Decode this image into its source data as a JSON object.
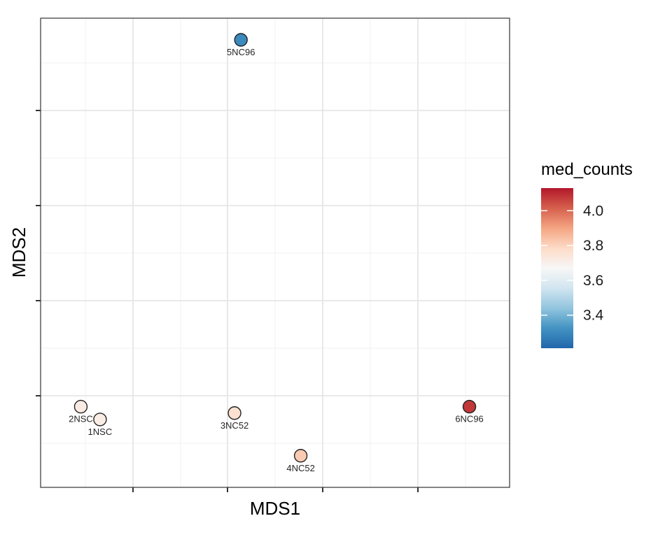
{
  "chart_data": {
    "type": "scatter",
    "title": "",
    "xlabel": "MDS1",
    "ylabel": "MDS2",
    "x_axis_tick_labels_shown": false,
    "y_axis_tick_labels_shown": false,
    "grid": true,
    "theme": "bw",
    "color_variable": "med_counts",
    "legend": {
      "title": "med_counts",
      "placement": "right",
      "ticks": [
        "3.4",
        "3.6",
        "3.8",
        "4.0"
      ],
      "range": [
        3.21,
        4.13
      ],
      "gradient": [
        "#2166ac",
        "#4393c3",
        "#92c5de",
        "#d1e5f0",
        "#f7f7f7",
        "#fddbc7",
        "#f4a582",
        "#d6604d",
        "#b2182b"
      ]
    },
    "points": [
      {
        "label": "5NC96",
        "x": 0.42,
        "y": 1.0,
        "value": 3.3
      },
      {
        "label": "2NSC",
        "x": 0.045,
        "y": 0.14,
        "value": 3.72
      },
      {
        "label": "1NSC",
        "x": 0.09,
        "y": 0.11,
        "value": 3.71
      },
      {
        "label": "3NC52",
        "x": 0.405,
        "y": 0.125,
        "value": 3.76
      },
      {
        "label": "4NC52",
        "x": 0.56,
        "y": 0.025,
        "value": 3.82
      },
      {
        "label": "6NC96",
        "x": 0.955,
        "y": 0.14,
        "value": 4.08
      }
    ]
  }
}
